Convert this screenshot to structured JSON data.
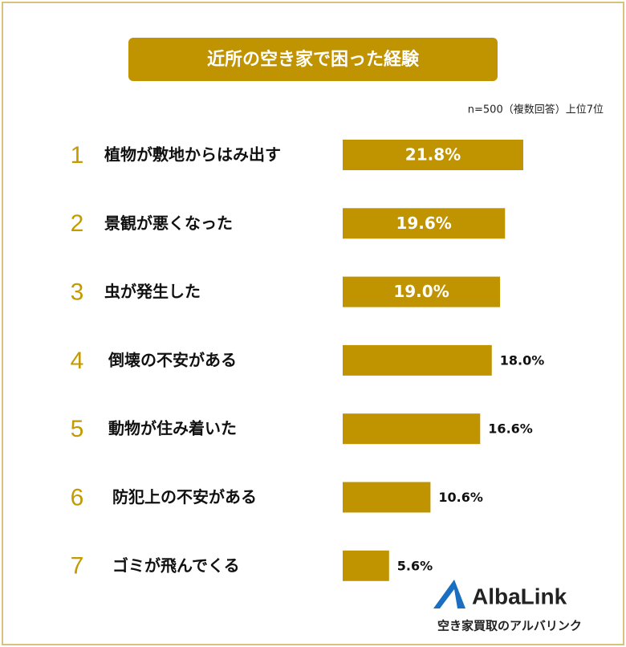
{
  "chart_data": {
    "type": "bar",
    "title": "近所の空き家で困った経験",
    "note": "n=500（複数回答）上位7位",
    "ranks": [
      "1",
      "2",
      "3",
      "4",
      "5",
      "6",
      "7"
    ],
    "categories": [
      "植物が敷地からはみ出す",
      "景観が悪くなった",
      "虫が発生した",
      "倒壊の不安がある",
      "動物が住み着いた",
      "防犯上の不安がある",
      "ゴミが飛んでくる"
    ],
    "values": [
      21.8,
      19.6,
      19.0,
      18.0,
      16.6,
      10.6,
      5.6
    ],
    "value_labels": [
      "21.8%",
      "19.6%",
      "19.0%",
      "18.0%",
      "16.6%",
      "10.6%",
      "5.6%"
    ],
    "color": "#c09300",
    "logo": {
      "name": "AlbaLink",
      "tagline": "空き家買取のアルバリンク"
    }
  }
}
